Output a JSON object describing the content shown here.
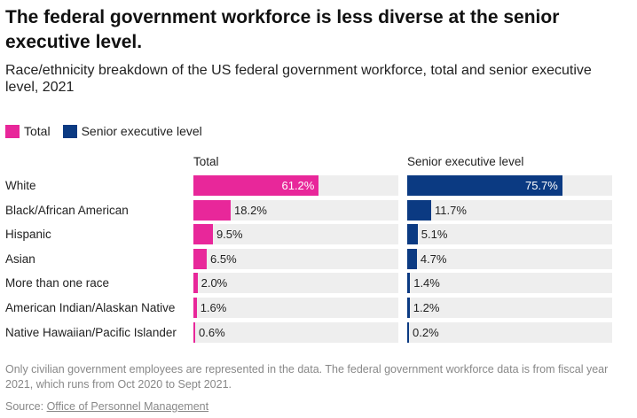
{
  "chart_data": {
    "type": "bar",
    "title": "The federal government workforce is less diverse at the senior executive level.",
    "subtitle": "Race/ethnicity breakdown of the US federal government workforce, total and senior executive level, 2021",
    "categories": [
      "White",
      "Black/African American",
      "Hispanic",
      "Asian",
      "More than one race",
      "American Indian/Alaskan Native",
      "Native Hawaiian/Pacific Islander"
    ],
    "series": [
      {
        "name": "Total",
        "color": "#e8279a",
        "values": [
          61.2,
          18.2,
          9.5,
          6.5,
          2.0,
          1.6,
          0.6
        ],
        "labels": [
          "61.2%",
          "18.2%",
          "9.5%",
          "6.5%",
          "2.0%",
          "1.6%",
          "0.6%"
        ]
      },
      {
        "name": "Senior executive level",
        "color": "#0b3a82",
        "values": [
          75.7,
          11.7,
          5.1,
          4.7,
          1.4,
          1.2,
          0.2
        ],
        "labels": [
          "75.7%",
          "11.7%",
          "5.1%",
          "4.7%",
          "1.4%",
          "1.2%",
          "0.2%"
        ]
      }
    ],
    "xlim": [
      0,
      100
    ],
    "legend": "top-left",
    "grid": false
  },
  "note": "Only civilian government employees are represented in the data. The federal government workforce data is from fiscal year 2021, which runs from Oct 2020 to Sept 2021.",
  "source": {
    "label": "Source:",
    "link_text": "Office of Personnel Management"
  },
  "colors": {
    "track": "#eeeeee",
    "total": "#e8279a",
    "senior": "#0b3a82"
  }
}
